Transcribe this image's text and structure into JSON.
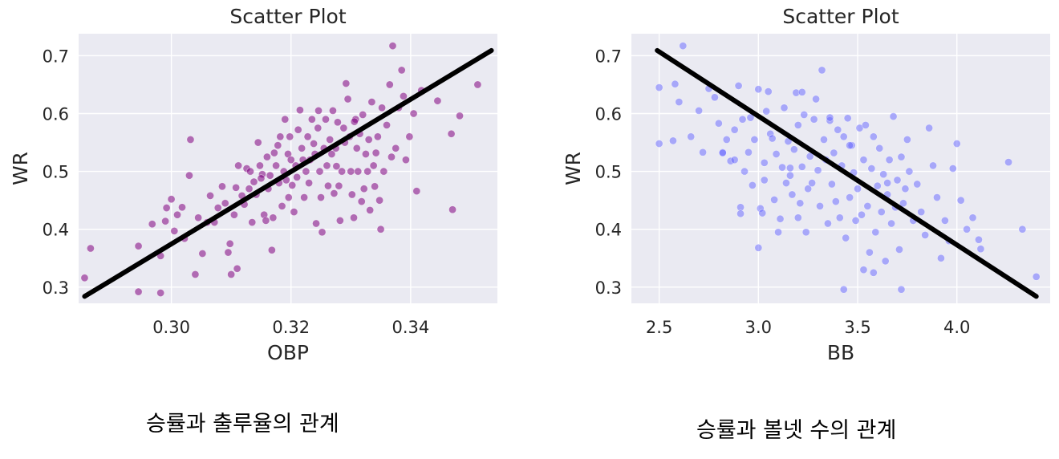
{
  "captions": {
    "left": "승률과 출루율의 관계",
    "right": "승률과 볼넷 수의 관계"
  },
  "chart_data": [
    {
      "type": "scatter",
      "title": "Scatter Plot",
      "xlabel": "OBP",
      "ylabel": "WR",
      "xlim": [
        0.2845,
        0.3545
      ],
      "ylim": [
        0.272,
        0.738
      ],
      "xticks": [
        "0.30",
        "0.32",
        "0.34"
      ],
      "yticks": [
        "0.3",
        "0.4",
        "0.5",
        "0.6",
        "0.7"
      ],
      "grid": true,
      "point_color": "#800080",
      "point_opacity": 0.55,
      "line_color": "#000000",
      "trend_line": {
        "x": [
          0.2855,
          0.3535
        ],
        "y": [
          0.284,
          0.709
        ]
      },
      "points": [
        [
          0.2855,
          0.316
        ],
        [
          0.2865,
          0.367
        ],
        [
          0.2945,
          0.371
        ],
        [
          0.2945,
          0.292
        ],
        [
          0.2968,
          0.409
        ],
        [
          0.2982,
          0.354
        ],
        [
          0.2982,
          0.29
        ],
        [
          0.299,
          0.414
        ],
        [
          0.2992,
          0.437
        ],
        [
          0.3,
          0.452
        ],
        [
          0.3005,
          0.397
        ],
        [
          0.301,
          0.425
        ],
        [
          0.3018,
          0.438
        ],
        [
          0.3022,
          0.384
        ],
        [
          0.303,
          0.493
        ],
        [
          0.3032,
          0.555
        ],
        [
          0.304,
          0.322
        ],
        [
          0.3045,
          0.42
        ],
        [
          0.3052,
          0.358
        ],
        [
          0.306,
          0.412
        ],
        [
          0.3065,
          0.458
        ],
        [
          0.3072,
          0.412
        ],
        [
          0.3078,
          0.437
        ],
        [
          0.3085,
          0.474
        ],
        [
          0.309,
          0.445
        ],
        [
          0.3095,
          0.36
        ],
        [
          0.3098,
          0.375
        ],
        [
          0.31,
          0.322
        ],
        [
          0.3105,
          0.425
        ],
        [
          0.311,
          0.332
        ],
        [
          0.3108,
          0.472
        ],
        [
          0.3112,
          0.51
        ],
        [
          0.3118,
          0.458
        ],
        [
          0.3122,
          0.443
        ],
        [
          0.3126,
          0.505
        ],
        [
          0.313,
          0.47
        ],
        [
          0.3132,
          0.5
        ],
        [
          0.3135,
          0.412
        ],
        [
          0.3138,
          0.482
        ],
        [
          0.3142,
          0.46
        ],
        [
          0.3145,
          0.55
        ],
        [
          0.3148,
          0.51
        ],
        [
          0.3152,
          0.495
        ],
        [
          0.3155,
          0.425
        ],
        [
          0.3158,
          0.415
        ],
        [
          0.316,
          0.525
        ],
        [
          0.3162,
          0.47
        ],
        [
          0.3165,
          0.493
        ],
        [
          0.3168,
          0.364
        ],
        [
          0.317,
          0.42
        ],
        [
          0.3172,
          0.532
        ],
        [
          0.3175,
          0.51
        ],
        [
          0.3178,
          0.545
        ],
        [
          0.318,
          0.48
        ],
        [
          0.3182,
          0.56
        ],
        [
          0.3185,
          0.44
        ],
        [
          0.3188,
          0.5
        ],
        [
          0.319,
          0.59
        ],
        [
          0.3192,
          0.485
        ],
        [
          0.3195,
          0.53
        ],
        [
          0.3198,
          0.56
        ],
        [
          0.32,
          0.52
        ],
        [
          0.3202,
          0.476
        ],
        [
          0.3205,
          0.43
        ],
        [
          0.3208,
          0.51
        ],
        [
          0.321,
          0.49
        ],
        [
          0.3212,
          0.572
        ],
        [
          0.3215,
          0.606
        ],
        [
          0.3218,
          0.54
        ],
        [
          0.322,
          0.52
        ],
        [
          0.3222,
          0.455
        ],
        [
          0.3225,
          0.5
        ],
        [
          0.3228,
          0.56
        ],
        [
          0.323,
          0.48
        ],
        [
          0.3232,
          0.52
        ],
        [
          0.3235,
          0.59
        ],
        [
          0.3238,
          0.548
        ],
        [
          0.324,
          0.53
        ],
        [
          0.3242,
          0.41
        ],
        [
          0.3245,
          0.575
        ],
        [
          0.3248,
          0.5
        ],
        [
          0.325,
          0.455
        ],
        [
          0.3252,
          0.395
        ],
        [
          0.3255,
          0.54
        ],
        [
          0.3258,
          0.59
        ],
        [
          0.326,
          0.51
        ],
        [
          0.3262,
          0.475
        ],
        [
          0.3265,
          0.555
        ],
        [
          0.3268,
          0.53
        ],
        [
          0.327,
          0.605
        ],
        [
          0.3272,
          0.462
        ],
        [
          0.3275,
          0.54
        ],
        [
          0.3278,
          0.585
        ],
        [
          0.328,
          0.475
        ],
        [
          0.3282,
          0.415
        ],
        [
          0.3285,
          0.5
        ],
        [
          0.3288,
          0.575
        ],
        [
          0.329,
          0.55
        ],
        [
          0.3292,
          0.652
        ],
        [
          0.3295,
          0.625
        ],
        [
          0.3298,
          0.56
        ],
        [
          0.33,
          0.5
        ],
        [
          0.3302,
          0.46
        ],
        [
          0.3305,
          0.42
        ],
        [
          0.3308,
          0.59
        ],
        [
          0.331,
          0.54
        ],
        [
          0.3312,
          0.5
        ],
        [
          0.3315,
          0.565
        ],
        [
          0.3318,
          0.448
        ],
        [
          0.332,
          0.598
        ],
        [
          0.3322,
          0.47
        ],
        [
          0.3325,
          0.53
        ],
        [
          0.3328,
          0.5
        ],
        [
          0.333,
          0.555
        ],
        [
          0.3332,
          0.433
        ],
        [
          0.3335,
          0.62
        ],
        [
          0.3338,
          0.51
        ],
        [
          0.334,
          0.474
        ],
        [
          0.3342,
          0.532
        ],
        [
          0.3345,
          0.56
        ],
        [
          0.3348,
          0.45
        ],
        [
          0.335,
          0.4
        ],
        [
          0.3352,
          0.61
        ],
        [
          0.3355,
          0.5
        ],
        [
          0.336,
          0.58
        ],
        [
          0.3365,
          0.65
        ],
        [
          0.3368,
          0.525
        ],
        [
          0.337,
          0.717
        ],
        [
          0.3375,
          0.54
        ],
        [
          0.338,
          0.61
        ],
        [
          0.3385,
          0.675
        ],
        [
          0.3388,
          0.63
        ],
        [
          0.3392,
          0.52
        ],
        [
          0.3398,
          0.56
        ],
        [
          0.3405,
          0.6
        ],
        [
          0.341,
          0.466
        ],
        [
          0.3418,
          0.64
        ],
        [
          0.3445,
          0.622
        ],
        [
          0.3468,
          0.565
        ],
        [
          0.347,
          0.434
        ],
        [
          0.3482,
          0.596
        ],
        [
          0.3512,
          0.65
        ],
        [
          0.315,
          0.488
        ],
        [
          0.3196,
          0.455
        ],
        [
          0.3246,
          0.605
        ],
        [
          0.3276,
          0.509
        ],
        [
          0.3306,
          0.586
        ]
      ]
    },
    {
      "type": "scatter",
      "title": "Scatter Plot",
      "xlabel": "BB",
      "ylabel": "WR",
      "xlim": [
        2.36,
        4.47
      ],
      "ylim": [
        0.272,
        0.738
      ],
      "xticks": [
        "2.5",
        "3.0",
        "3.5",
        "4.0"
      ],
      "yticks": [
        "0.3",
        "0.4",
        "0.5",
        "0.6",
        "0.7"
      ],
      "grid": true,
      "point_color": "#6464ff",
      "point_opacity": 0.5,
      "line_color": "#000000",
      "trend_line": {
        "x": [
          2.49,
          4.4
        ],
        "y": [
          0.709,
          0.284
        ]
      },
      "points": [
        [
          2.5,
          0.645
        ],
        [
          2.5,
          0.548
        ],
        [
          2.57,
          0.553
        ],
        [
          2.58,
          0.651
        ],
        [
          2.6,
          0.62
        ],
        [
          2.62,
          0.717
        ],
        [
          2.66,
          0.56
        ],
        [
          2.7,
          0.605
        ],
        [
          2.72,
          0.533
        ],
        [
          2.75,
          0.643
        ],
        [
          2.78,
          0.628
        ],
        [
          2.8,
          0.583
        ],
        [
          2.82,
          0.533
        ],
        [
          2.82,
          0.532
        ],
        [
          2.84,
          0.555
        ],
        [
          2.86,
          0.518
        ],
        [
          2.88,
          0.572
        ],
        [
          2.88,
          0.52
        ],
        [
          2.9,
          0.648
        ],
        [
          2.92,
          0.59
        ],
        [
          2.93,
          0.5
        ],
        [
          2.95,
          0.533
        ],
        [
          2.96,
          0.593
        ],
        [
          2.97,
          0.476
        ],
        [
          2.98,
          0.555
        ],
        [
          3.0,
          0.642
        ],
        [
          3.01,
          0.436
        ],
        [
          3.02,
          0.428
        ],
        [
          3.03,
          0.515
        ],
        [
          3.04,
          0.604
        ],
        [
          3.05,
          0.638
        ],
        [
          3.06,
          0.565
        ],
        [
          3.07,
          0.557
        ],
        [
          3.08,
          0.451
        ],
        [
          3.09,
          0.53
        ],
        [
          3.1,
          0.395
        ],
        [
          3.11,
          0.418
        ],
        [
          3.12,
          0.507
        ],
        [
          3.13,
          0.61
        ],
        [
          3.14,
          0.48
        ],
        [
          3.15,
          0.552
        ],
        [
          3.16,
          0.493
        ],
        [
          3.17,
          0.46
        ],
        [
          3.18,
          0.538
        ],
        [
          3.19,
          0.636
        ],
        [
          3.2,
          0.58
        ],
        [
          3.21,
          0.445
        ],
        [
          3.22,
          0.508
        ],
        [
          3.23,
          0.598
        ],
        [
          3.24,
          0.395
        ],
        [
          3.25,
          0.47
        ],
        [
          3.26,
          0.526
        ],
        [
          3.27,
          0.48
        ],
        [
          3.28,
          0.59
        ],
        [
          3.29,
          0.625
        ],
        [
          3.3,
          0.502
        ],
        [
          3.31,
          0.44
        ],
        [
          3.32,
          0.675
        ],
        [
          3.33,
          0.555
        ],
        [
          3.34,
          0.52
        ],
        [
          3.35,
          0.41
        ],
        [
          3.36,
          0.588
        ],
        [
          3.37,
          0.478
        ],
        [
          3.38,
          0.532
        ],
        [
          3.39,
          0.448
        ],
        [
          3.4,
          0.572
        ],
        [
          3.41,
          0.42
        ],
        [
          3.42,
          0.51
        ],
        [
          3.43,
          0.56
        ],
        [
          3.44,
          0.385
        ],
        [
          3.45,
          0.592
        ],
        [
          3.46,
          0.455
        ],
        [
          3.47,
          0.545
        ],
        [
          3.48,
          0.498
        ],
        [
          3.49,
          0.415
        ],
        [
          3.5,
          0.47
        ],
        [
          3.51,
          0.575
        ],
        [
          3.52,
          0.425
        ],
        [
          3.53,
          0.52
        ],
        [
          3.54,
          0.58
        ],
        [
          3.55,
          0.44
        ],
        [
          3.56,
          0.36
        ],
        [
          3.57,
          0.505
        ],
        [
          3.58,
          0.56
        ],
        [
          3.59,
          0.395
        ],
        [
          3.6,
          0.475
        ],
        [
          3.61,
          0.54
        ],
        [
          3.62,
          0.43
        ],
        [
          3.63,
          0.495
        ],
        [
          3.64,
          0.345
        ],
        [
          3.65,
          0.46
        ],
        [
          3.66,
          0.52
        ],
        [
          3.67,
          0.41
        ],
        [
          3.68,
          0.595
        ],
        [
          3.69,
          0.438
        ],
        [
          3.7,
          0.485
        ],
        [
          3.71,
          0.365
        ],
        [
          3.72,
          0.525
        ],
        [
          3.73,
          0.445
        ],
        [
          3.74,
          0.47
        ],
        [
          3.75,
          0.555
        ],
        [
          3.76,
          0.5
        ],
        [
          3.78,
          0.415
        ],
        [
          3.8,
          0.478
        ],
        [
          3.82,
          0.43
        ],
        [
          3.84,
          0.39
        ],
        [
          3.86,
          0.575
        ],
        [
          3.88,
          0.51
        ],
        [
          3.9,
          0.455
        ],
        [
          3.92,
          0.35
        ],
        [
          3.94,
          0.415
        ],
        [
          3.96,
          0.38
        ],
        [
          3.98,
          0.505
        ],
        [
          4.0,
          0.548
        ],
        [
          4.02,
          0.45
        ],
        [
          4.05,
          0.4
        ],
        [
          4.08,
          0.42
        ],
        [
          4.11,
          0.382
        ],
        [
          4.12,
          0.366
        ],
        [
          4.26,
          0.516
        ],
        [
          4.33,
          0.4
        ],
        [
          4.4,
          0.318
        ],
        [
          2.91,
          0.438
        ],
        [
          2.91,
          0.427
        ],
        [
          3.43,
          0.296
        ],
        [
          3.53,
          0.33
        ],
        [
          3.72,
          0.296
        ],
        [
          3.0,
          0.368
        ],
        [
          3.2,
          0.42
        ],
        [
          3.58,
          0.325
        ],
        [
          3.36,
          0.593
        ],
        [
          3.22,
          0.637
        ],
        [
          3.46,
          0.545
        ],
        [
          3.65,
          0.48
        ],
        [
          3.03,
          0.485
        ],
        [
          3.16,
          0.506
        ]
      ]
    }
  ]
}
